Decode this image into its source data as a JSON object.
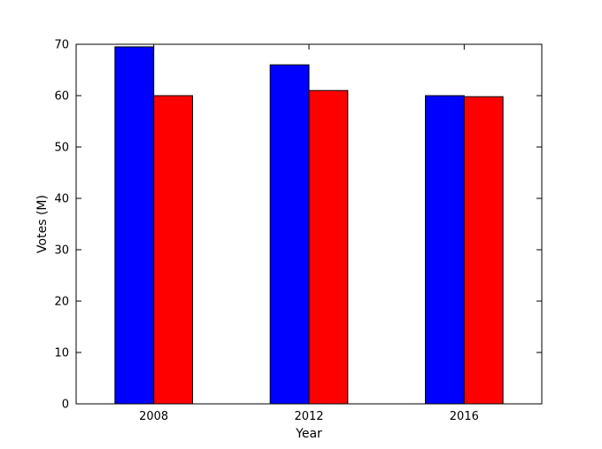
{
  "chart_data": {
    "type": "bar",
    "categories": [
      "2008",
      "2012",
      "2016"
    ],
    "series": [
      {
        "values": [
          69.5,
          66.0,
          60.0
        ],
        "color": "#0000ff"
      },
      {
        "values": [
          60.0,
          61.0,
          59.8
        ],
        "color": "#ff0000"
      }
    ],
    "xlabel": "Year",
    "ylabel": "Votes (M)",
    "ylim": [
      0,
      70
    ],
    "yticks": [
      0,
      10,
      20,
      30,
      40,
      50,
      60,
      70
    ],
    "grid": false,
    "legend": "none"
  }
}
